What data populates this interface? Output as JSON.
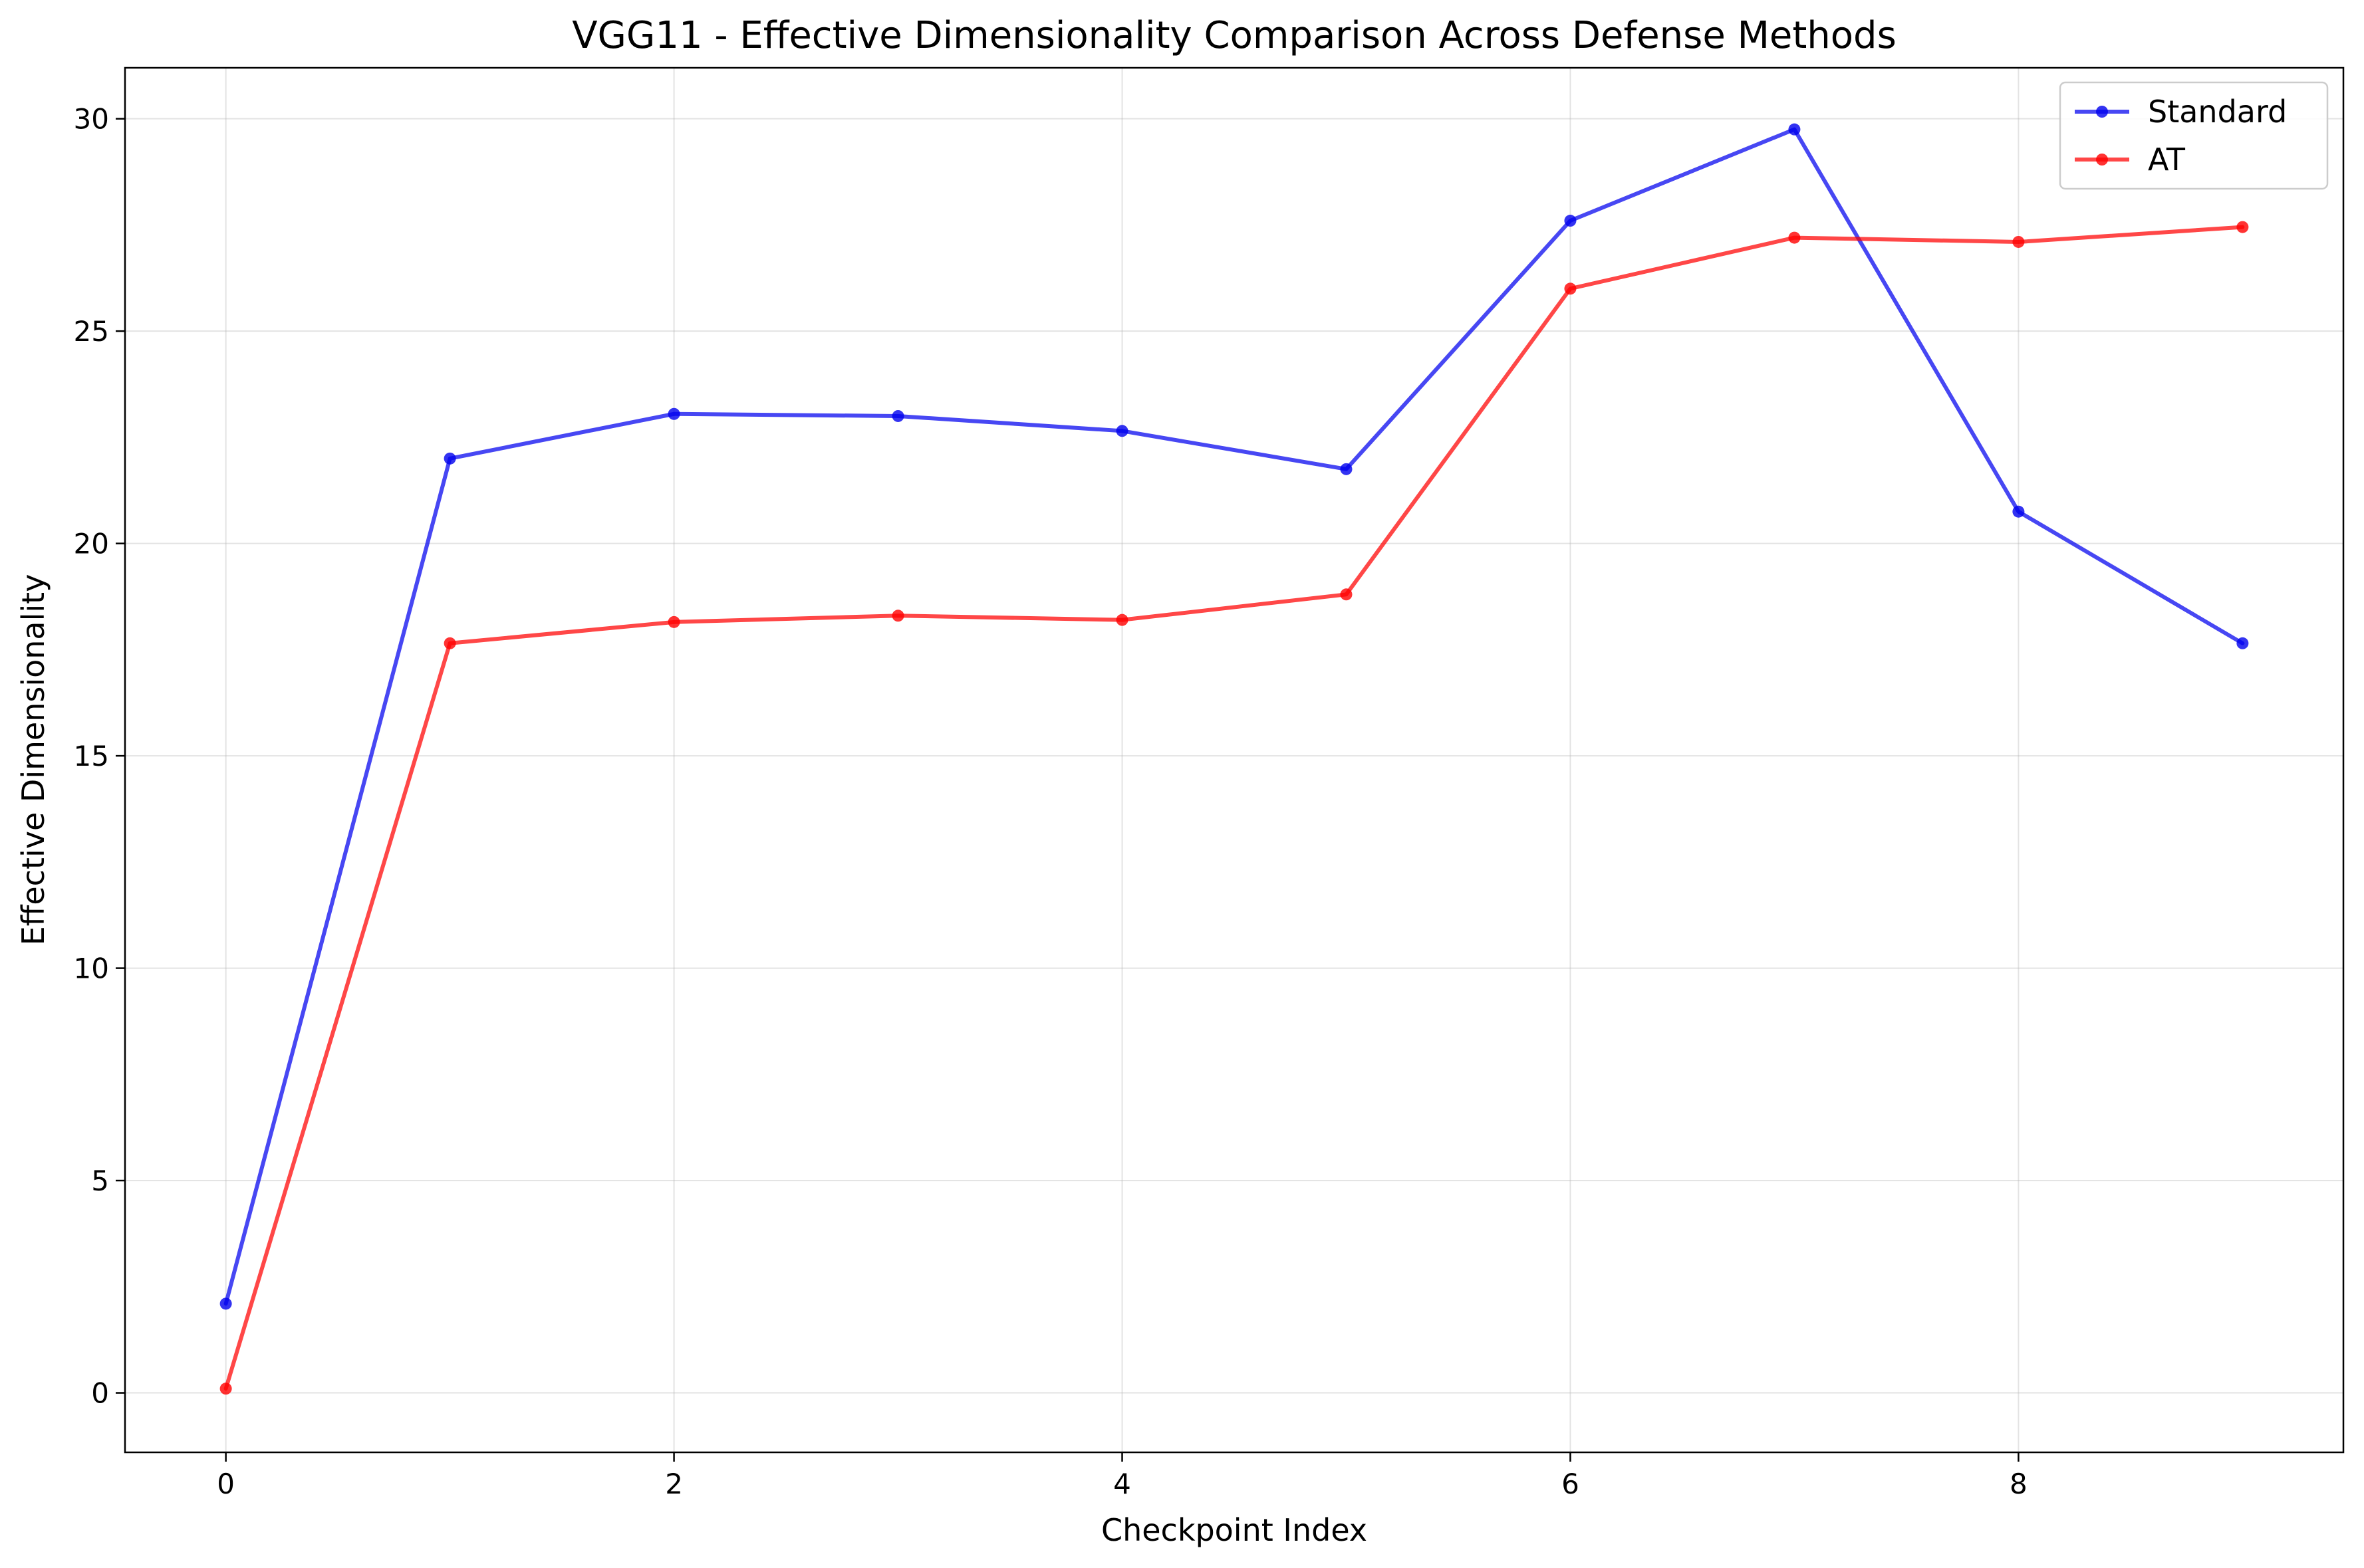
{
  "chart_data": {
    "type": "line",
    "title": "VGG11 - Effective Dimensionality Comparison Across Defense Methods",
    "xlabel": "Checkpoint Index",
    "ylabel": "Effective Dimensionality",
    "x": [
      0,
      1,
      2,
      3,
      4,
      5,
      6,
      7,
      8,
      9
    ],
    "xlim": [
      -0.45,
      9.45
    ],
    "ylim": [
      -1.4,
      31.2
    ],
    "xticks": [
      0,
      2,
      4,
      6,
      8
    ],
    "yticks": [
      0,
      5,
      10,
      15,
      20,
      25,
      30
    ],
    "xtick_labels": [
      "0",
      "2",
      "4",
      "6",
      "8"
    ],
    "ytick_labels": [
      "0",
      "5",
      "10",
      "15",
      "20",
      "25",
      "30"
    ],
    "grid": true,
    "legend_position": "top-right",
    "series": [
      {
        "name": "Standard",
        "color": "#0000ee",
        "values": [
          2.1,
          22.0,
          23.05,
          23.0,
          22.65,
          21.75,
          27.6,
          29.75,
          20.75,
          17.65
        ]
      },
      {
        "name": "AT",
        "color": "#ff0000",
        "values": [
          0.1,
          17.65,
          18.15,
          18.3,
          18.2,
          18.8,
          26.0,
          27.2,
          27.1,
          27.45
        ]
      }
    ]
  }
}
